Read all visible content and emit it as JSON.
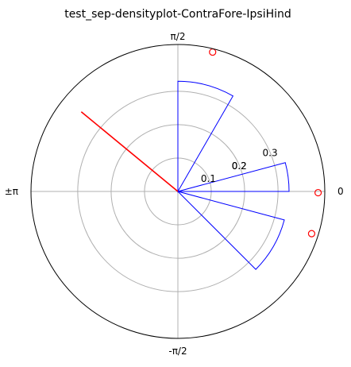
{
  "chart_data": {
    "type": "polar-histogram",
    "title": "test_sep-densityplot-ContraFore-IpsiHind",
    "angle_tick_labels": [
      "0",
      "π/2",
      "±π",
      "-π/2"
    ],
    "radial_tick_labels": [
      "0.1",
      "0.2",
      "0.2",
      "0.3"
    ],
    "radial_tick_values": [
      0.1,
      0.2,
      0.2,
      0.3
    ],
    "r_max": 0.44,
    "grid": true,
    "colors": {
      "bars": "#0000ff",
      "mean_vector": "#ff0000",
      "points": "#ff0000",
      "grid": "#b0b0b0",
      "frame": "#000000"
    },
    "bars": [
      {
        "theta_start_deg": 0,
        "theta_end_deg": 15,
        "r": 0.333
      },
      {
        "theta_start_deg": 60,
        "theta_end_deg": 90,
        "r": 0.33
      },
      {
        "theta_start_deg": -45,
        "theta_end_deg": -15,
        "r": 0.33
      }
    ],
    "mean_vector": {
      "theta_deg": 140.5,
      "r": 0.375
    },
    "points": [
      {
        "theta_deg": 76,
        "r": 0.43
      },
      {
        "theta_deg": -0.5,
        "r": 0.42
      },
      {
        "theta_deg": -17.5,
        "r": 0.42
      }
    ]
  }
}
